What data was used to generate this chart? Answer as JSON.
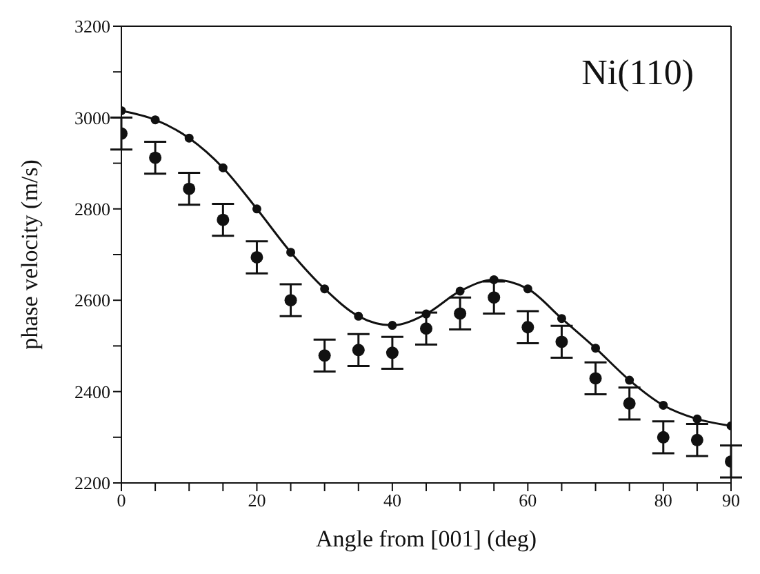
{
  "chart_data": {
    "type": "line",
    "xlabel": "Angle from [001]  (deg)",
    "ylabel": "phase velocity  (m/s)",
    "annotations": [
      "Ni(110)"
    ],
    "x": [
      0,
      5,
      10,
      15,
      20,
      25,
      30,
      35,
      40,
      45,
      50,
      55,
      60,
      65,
      70,
      75,
      80,
      85,
      90
    ],
    "series": [
      {
        "type": "line",
        "color": "#111111",
        "marker": "circle",
        "line_style": "solid",
        "values": [
          3015,
          2995,
          2955,
          2890,
          2800,
          2705,
          2625,
          2565,
          2545,
          2570,
          2620,
          2645,
          2625,
          2560,
          2495,
          2425,
          2370,
          2340,
          2325
        ]
      },
      {
        "type": "scatter",
        "color": "#111111",
        "marker": "circle",
        "values": [
          2965,
          2912,
          2844,
          2776,
          2694,
          2600,
          2479,
          2491,
          2485,
          2538,
          2571,
          2606,
          2541,
          2509,
          2429,
          2374,
          2300,
          2294,
          2247
        ],
        "errors": [
          35,
          35,
          35,
          35,
          35,
          35,
          35,
          35,
          35,
          35,
          35,
          35,
          35,
          35,
          35,
          35,
          35,
          35,
          35
        ]
      }
    ],
    "xlim": [
      0,
      90
    ],
    "xticks": [
      0,
      {
        "value": 5,
        "label": null
      },
      {
        "value": 10,
        "label": null
      },
      {
        "value": 15,
        "label": null
      },
      20,
      {
        "value": 25,
        "label": null
      },
      {
        "value": 30,
        "label": null
      },
      {
        "value": 35,
        "label": null
      },
      40,
      {
        "value": 45,
        "label": null
      },
      {
        "value": 50,
        "label": null
      },
      {
        "value": 55,
        "label": null
      },
      60,
      {
        "value": 65,
        "label": null
      },
      {
        "value": 70,
        "label": null
      },
      {
        "value": 75,
        "label": null
      },
      80,
      {
        "value": 85,
        "label": null
      },
      90
    ],
    "ylim": [
      2200,
      3200
    ],
    "yticks": [
      2200,
      {
        "value": 2300,
        "label": null
      },
      2400,
      {
        "value": 2500,
        "label": null
      },
      2600,
      {
        "value": 2700,
        "label": null
      },
      2800,
      {
        "value": 2900,
        "label": null
      },
      3000,
      {
        "value": 3100,
        "label": null
      },
      3200
    ],
    "grid": false,
    "legend": false
  }
}
